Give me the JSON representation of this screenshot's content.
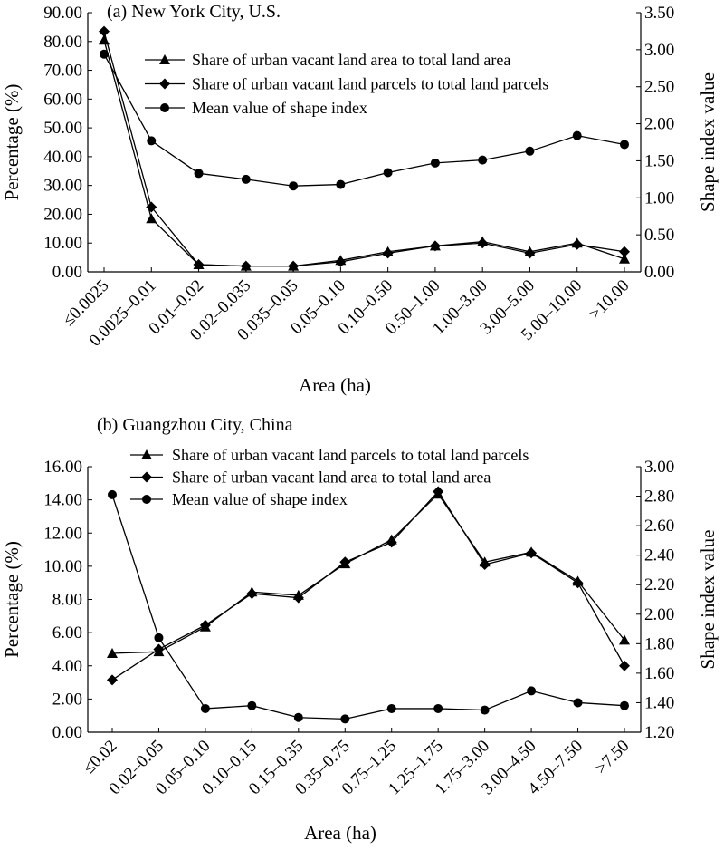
{
  "chart_data": [
    {
      "type": "line",
      "title": "(a) New York City, U.S.",
      "xlabel": "Area (ha)",
      "ylabel": "Percentage (%)",
      "y2label": "Shape index value",
      "categories": [
        "≤0.0025",
        "0.0025–0.01",
        "0.01–0.02",
        "0.02–0.035",
        "0.035–0.05",
        "0.05–0.10",
        "0.10–0.50",
        "0.50–1.00",
        "1.00–3.00",
        "3.00–5.00",
        "5.00–10.00",
        ">10.00"
      ],
      "ylim": [
        0,
        90
      ],
      "y_ticks": [
        "0.00",
        "10.00",
        "20.00",
        "30.00",
        "40.00",
        "50.00",
        "60.00",
        "70.00",
        "80.00",
        "90.00"
      ],
      "y2lim": [
        0,
        3.5
      ],
      "y2_ticks": [
        "0.00",
        "0.50",
        "1.00",
        "1.50",
        "2.00",
        "2.50",
        "3.00",
        "3.50"
      ],
      "legend_position": "top-center",
      "series": [
        {
          "name": "Share of urban vacant land area to total land area",
          "marker": "triangle",
          "axis": "left",
          "values": [
            80.5,
            18.5,
            2.5,
            2.0,
            2.0,
            4.0,
            7.0,
            9.0,
            10.5,
            7.0,
            10.0,
            4.5
          ]
        },
        {
          "name": "Share of urban vacant land parcels to total land parcels",
          "marker": "diamond",
          "axis": "left",
          "values": [
            83.5,
            22.5,
            2.5,
            2.0,
            2.0,
            3.5,
            6.5,
            9.0,
            10.0,
            6.5,
            9.5,
            7.0
          ]
        },
        {
          "name": "Mean value of shape index",
          "marker": "circle",
          "axis": "right",
          "values": [
            2.94,
            1.77,
            1.33,
            1.25,
            1.16,
            1.18,
            1.34,
            1.47,
            1.51,
            1.63,
            1.84,
            1.72
          ]
        }
      ]
    },
    {
      "type": "line",
      "title": "(b) Guangzhou City, China",
      "xlabel": "Area (ha)",
      "ylabel": "Percentage (%)",
      "y2label": "Shape index value",
      "categories": [
        "≤0.02",
        "0.02–0.05",
        "0.05–0.10",
        "0.10–0.15",
        "0.15–0.35",
        "0.35–0.75",
        "0.75–1.25",
        "1.25–1.75",
        "1.75–3.00",
        "3.00–4.50",
        "4.50–7.50",
        ">7.50"
      ],
      "ylim": [
        0,
        16
      ],
      "y_ticks": [
        "0.00",
        "2.00",
        "4.00",
        "6.00",
        "8.00",
        "10.00",
        "12.00",
        "14.00",
        "16.00"
      ],
      "y2lim": [
        1.2,
        3.0
      ],
      "y2_ticks": [
        "1.20",
        "1.40",
        "1.60",
        "1.80",
        "2.00",
        "2.20",
        "2.40",
        "2.60",
        "2.80",
        "3.00"
      ],
      "legend_position": "top-center",
      "series": [
        {
          "name": "Share of urban vacant land parcels to total land parcels",
          "marker": "triangle",
          "axis": "left",
          "values": [
            4.75,
            4.85,
            6.35,
            8.45,
            8.25,
            10.15,
            11.6,
            14.35,
            10.25,
            10.85,
            9.1,
            5.55
          ]
        },
        {
          "name": "Share of urban vacant land area to total land area",
          "marker": "diamond",
          "axis": "left",
          "values": [
            3.15,
            5.0,
            6.45,
            8.35,
            8.1,
            10.25,
            11.45,
            14.5,
            10.1,
            10.8,
            9.0,
            4.0
          ]
        },
        {
          "name": "Mean value of shape index",
          "marker": "circle",
          "axis": "right",
          "values": [
            2.81,
            1.84,
            1.36,
            1.38,
            1.3,
            1.29,
            1.36,
            1.36,
            1.35,
            1.48,
            1.4,
            1.38
          ]
        }
      ]
    }
  ]
}
